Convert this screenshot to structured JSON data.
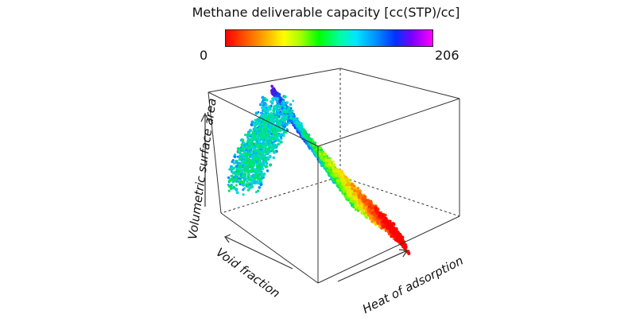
{
  "chart_data": {
    "type": "scatter",
    "title": "Methane deliverable capacity [cc(STP)/cc]",
    "colorbar": {
      "min": 0,
      "max": 206,
      "min_label": "0",
      "max_label": "206",
      "colormap": [
        "#ff0000",
        "#ffa500",
        "#ffff00",
        "#00ff00",
        "#00ffff",
        "#0000ff",
        "#ff00ff"
      ]
    },
    "axes": {
      "x": "Heat of adsorption",
      "y": "Void fraction",
      "z": "Volumetric surface area"
    },
    "projection": "3d",
    "grid": false,
    "legend": "colorbar-top"
  }
}
